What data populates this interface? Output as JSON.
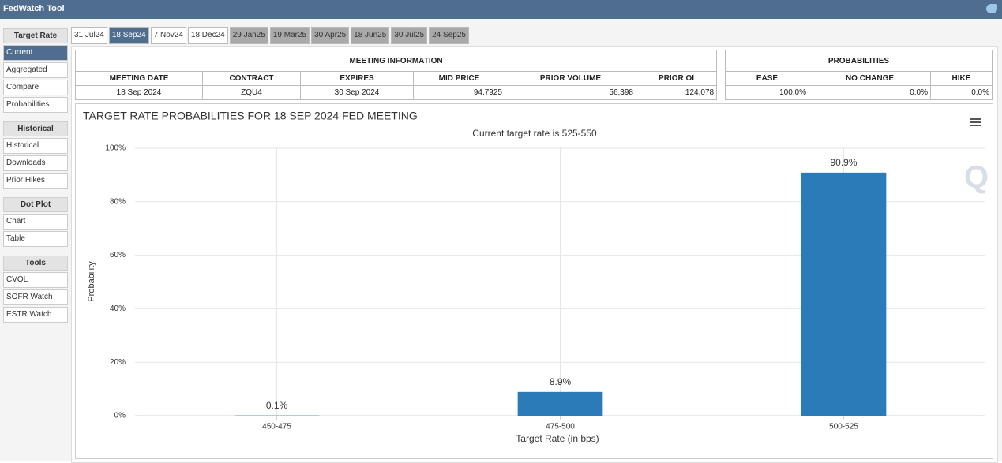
{
  "header": {
    "title": "FedWatch Tool"
  },
  "sidebar": [
    {
      "title": "Target Rate",
      "items": [
        "Current",
        "Aggregated",
        "Compare",
        "Probabilities"
      ]
    },
    {
      "title": "Historical",
      "items": [
        "Historical",
        "Downloads",
        "Prior Hikes"
      ]
    },
    {
      "title": "Dot Plot",
      "items": [
        "Chart",
        "Table"
      ]
    },
    {
      "title": "Tools",
      "items": [
        "CVOL",
        "SOFR Watch",
        "ESTR Watch"
      ]
    }
  ],
  "tabs": [
    "31 Jul24",
    "18 Sep24",
    "7 Nov24",
    "18 Dec24",
    "29 Jan25",
    "19 Mar25",
    "30 Apr25",
    "18 Jun25",
    "30 Jul25",
    "24 Sep25"
  ],
  "meeting_info": {
    "title": "MEETING INFORMATION",
    "headers": [
      "MEETING DATE",
      "CONTRACT",
      "EXPIRES",
      "MID PRICE",
      "PRIOR VOLUME",
      "PRIOR OI"
    ],
    "row": [
      "18 Sep 2024",
      "ZQU4",
      "30 Sep 2024",
      "94.7925",
      "56,398",
      "124,078"
    ]
  },
  "probabilities": {
    "title": "PROBABILITIES",
    "headers": [
      "EASE",
      "NO CHANGE",
      "HIKE"
    ],
    "row": [
      "100.0%",
      "0.0%",
      "0.0%"
    ]
  },
  "chart_data": {
    "type": "bar",
    "title": "TARGET RATE PROBABILITIES FOR 18 SEP 2024 FED MEETING",
    "subtitle": "Current target rate is 525-550",
    "x_label": "Target Rate (in bps)",
    "y_label": "Probability",
    "categories": [
      "450-475",
      "475-500",
      "500-525"
    ],
    "values": [
      0.1,
      8.9,
      90.9
    ],
    "value_labels": [
      "0.1%",
      "8.9%",
      "90.9%"
    ],
    "color": "#2b7bb9",
    "ylim": [
      0,
      100
    ],
    "yticks": [
      {
        "value": 0,
        "label": "0%"
      },
      {
        "value": 20,
        "label": "20%"
      },
      {
        "value": 40,
        "label": "40%"
      },
      {
        "value": 60,
        "label": "60%"
      },
      {
        "value": 80,
        "label": "80%"
      },
      {
        "value": 100,
        "label": "100%"
      }
    ],
    "grid": true
  }
}
